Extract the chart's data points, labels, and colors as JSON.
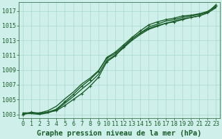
{
  "title": "Graphe pression niveau de la mer (hPa)",
  "background_color": "#cff0ea",
  "grid_color": "#a8d8d0",
  "line_color": "#1a5c2a",
  "xlim": [
    -0.5,
    23.5
  ],
  "ylim": [
    1002.5,
    1018.2
  ],
  "yticks": [
    1003,
    1005,
    1007,
    1009,
    1011,
    1013,
    1015,
    1017
  ],
  "xticks": [
    0,
    1,
    2,
    3,
    4,
    5,
    6,
    7,
    8,
    9,
    10,
    11,
    12,
    13,
    14,
    15,
    16,
    17,
    18,
    19,
    20,
    21,
    22,
    23
  ],
  "lines": [
    [
      1003.0,
      1003.3,
      1003.1,
      1003.3,
      1003.5,
      1004.2,
      1005.0,
      1005.8,
      1006.8,
      1008.0,
      1010.1,
      1010.9,
      1012.1,
      1013.2,
      1014.0,
      1014.6,
      1015.0,
      1015.3,
      1015.5,
      1015.8,
      1016.1,
      1016.3,
      1016.8,
      1017.8
    ],
    [
      1003.1,
      1003.1,
      1003.0,
      1003.2,
      1003.6,
      1004.5,
      1005.4,
      1006.4,
      1007.3,
      1008.4,
      1010.3,
      1011.0,
      1012.0,
      1013.0,
      1013.8,
      1014.5,
      1014.9,
      1015.3,
      1015.6,
      1015.9,
      1016.1,
      1016.3,
      1016.7,
      1017.4
    ],
    [
      1003.2,
      1003.2,
      1003.2,
      1003.5,
      1004.1,
      1005.1,
      1006.0,
      1007.1,
      1007.9,
      1008.9,
      1010.6,
      1011.2,
      1012.2,
      1013.2,
      1014.0,
      1014.8,
      1015.2,
      1015.6,
      1015.8,
      1016.1,
      1016.3,
      1016.5,
      1016.9,
      1017.5
    ],
    [
      1003.0,
      1003.2,
      1003.1,
      1003.3,
      1003.7,
      1004.7,
      1005.7,
      1006.8,
      1007.7,
      1008.8,
      1010.7,
      1011.4,
      1012.4,
      1013.4,
      1014.3,
      1015.1,
      1015.5,
      1015.8,
      1016.0,
      1016.3,
      1016.4,
      1016.6,
      1016.9,
      1017.6
    ]
  ],
  "markers_per_line": [
    [
      0,
      1,
      2,
      3,
      4,
      5,
      6,
      7,
      8,
      9,
      10,
      11,
      12,
      13,
      14,
      15,
      16,
      17,
      18,
      19,
      20,
      21,
      22,
      23
    ],
    [],
    [],
    [
      0,
      1,
      2,
      3,
      4,
      5,
      6,
      7,
      8,
      9,
      10,
      11,
      12,
      13,
      14,
      15,
      16,
      17,
      18,
      19,
      20,
      21,
      22,
      23
    ]
  ],
  "marker_style": "+",
  "marker_size": 3.5,
  "line_width": 1.0,
  "title_fontsize": 7.5,
  "tick_fontsize": 6.0,
  "tick_color": "#1a5c2a",
  "spine_color": "#1a5c2a"
}
